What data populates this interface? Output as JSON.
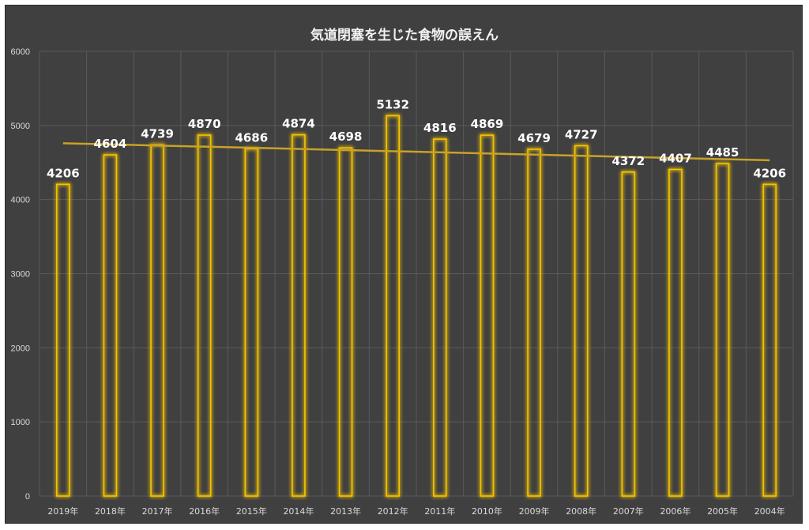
{
  "chart_data": {
    "type": "bar",
    "title": "気道閉塞を生じた食物の誤えん",
    "xlabel": "",
    "ylabel": "",
    "categories": [
      "2019年",
      "2018年",
      "2017年",
      "2016年",
      "2015年",
      "2014年",
      "2013年",
      "2012年",
      "2011年",
      "2010年",
      "2009年",
      "2008年",
      "2007年",
      "2006年",
      "2005年",
      "2004年"
    ],
    "values": [
      4206,
      4604,
      4739,
      4870,
      4686,
      4874,
      4698,
      5132,
      4816,
      4869,
      4679,
      4727,
      4372,
      4407,
      4485,
      4206
    ],
    "ylim": [
      0,
      6000
    ],
    "yticks": [
      0,
      1000,
      2000,
      3000,
      4000,
      5000,
      6000
    ],
    "data_labels": true,
    "grid": true,
    "legend": "none",
    "trendline": {
      "type": "linear",
      "start_value": 4760,
      "end_value": 4530
    },
    "colors": {
      "background": "#404040",
      "bar_outline": "#f5c400",
      "bar_glow": "#ffe000",
      "trendline": "#c9a227",
      "gridline": "#5a5a5a",
      "text": "#ffffff",
      "axis_text": "#d9d9d9"
    }
  }
}
